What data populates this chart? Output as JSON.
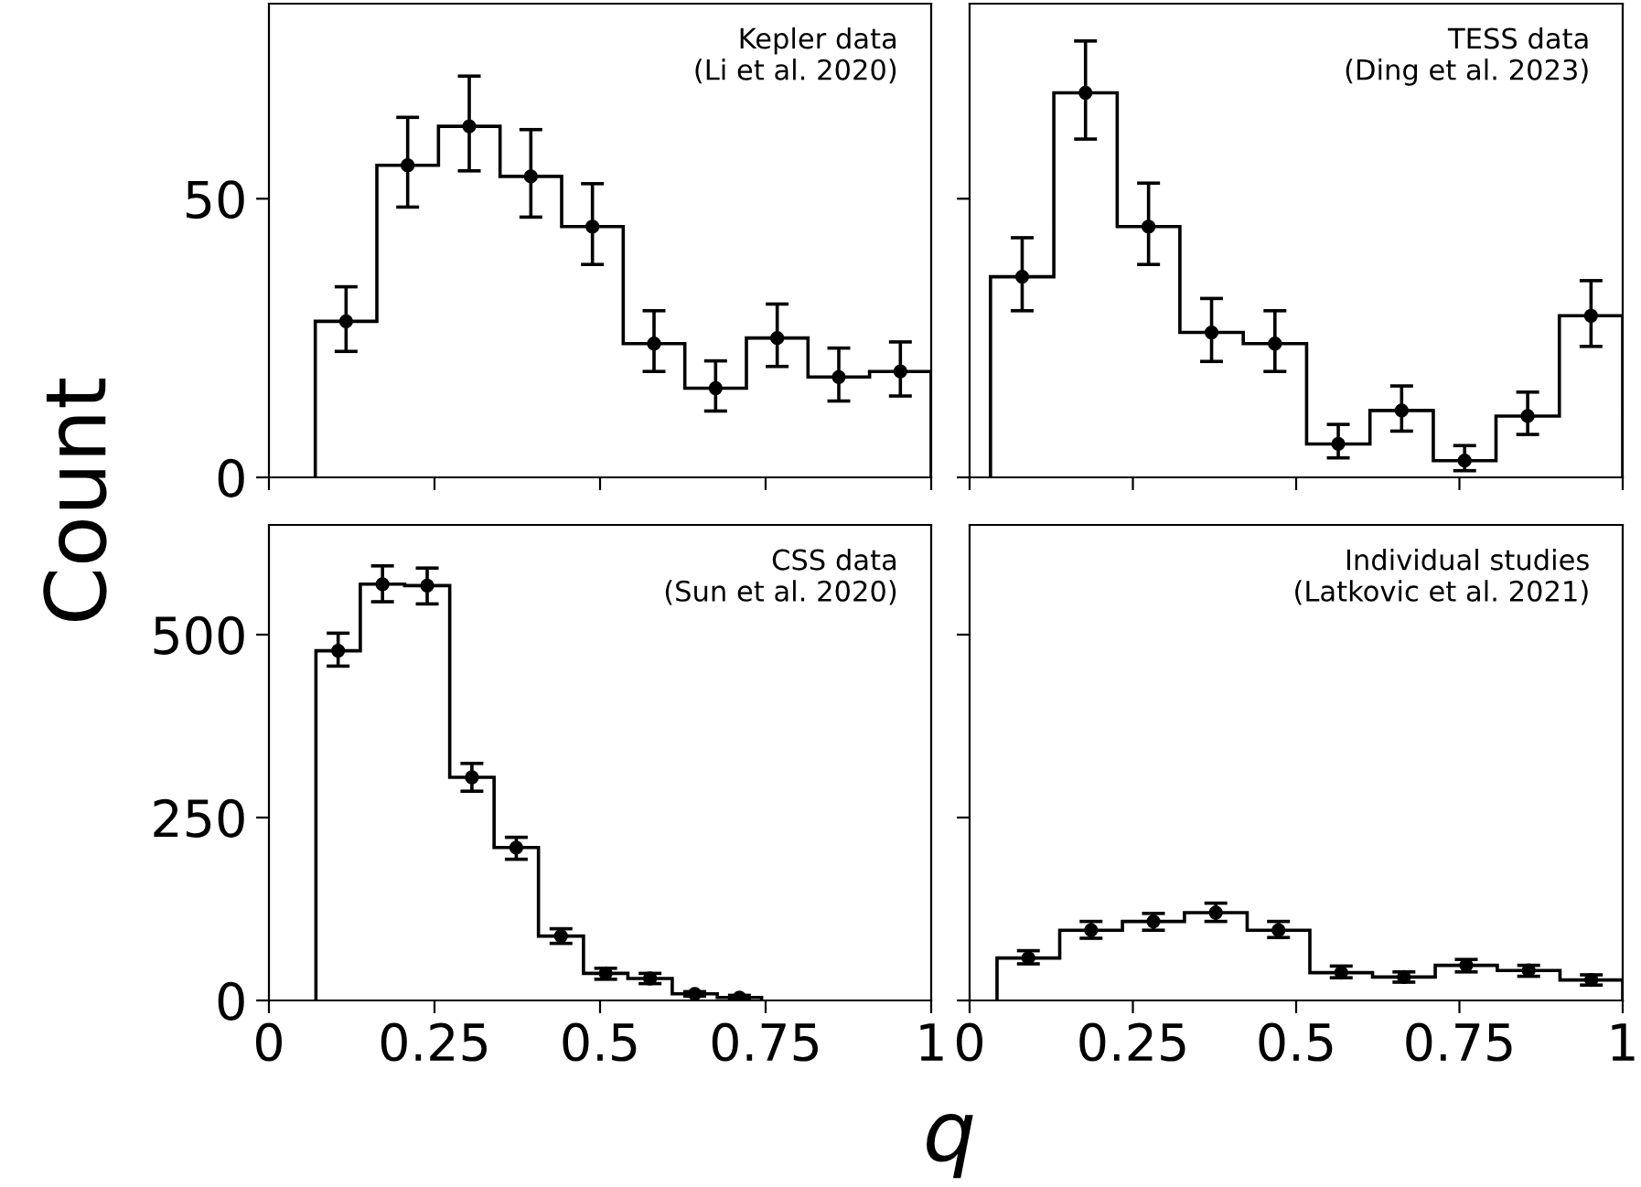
{
  "chart_data": [
    {
      "type": "histogram",
      "ylabel": "Count",
      "annotations": [
        "Kepler data\n(Li et al. 2020)"
      ],
      "bins": [
        0.07,
        0.163,
        0.256,
        0.349,
        0.442,
        0.535,
        0.628,
        0.721,
        0.814,
        0.907,
        1.0
      ],
      "values": [
        28,
        56,
        63,
        54,
        45,
        24,
        16,
        25,
        18,
        19
      ],
      "color": "#000000",
      "series": [
        {
          "type": "scatter",
          "color": "#000000",
          "x": [
            0.1165,
            0.2095,
            0.3025,
            0.3955,
            0.4885,
            0.5815,
            0.6745,
            0.7675,
            0.8605,
            0.9535
          ],
          "values": [
            28,
            56,
            63,
            54,
            45,
            24,
            16,
            25,
            18,
            19
          ],
          "errors": [
            [
              22.6,
              34.2
            ],
            [
              48.5,
              64.6
            ],
            [
              55,
              72
            ],
            [
              46.7,
              62.4
            ],
            [
              38.2,
              52.7
            ],
            [
              19,
              29.9
            ],
            [
              11.9,
              20.9
            ],
            [
              19.9,
              31.1
            ],
            [
              13.7,
              23.2
            ],
            [
              14.6,
              24.3
            ]
          ]
        }
      ],
      "marker": "circle",
      "xlim": [
        0,
        1
      ],
      "ylim": [
        0,
        85
      ],
      "yticks": [
        0,
        50
      ],
      "xticks": [
        0,
        0.25,
        0.5,
        0.75,
        1
      ],
      "tick_labels": "y"
    },
    {
      "type": "histogram",
      "annotations": [
        "TESS data\n(Ding et al. 2023)"
      ],
      "bins": [
        0.032,
        0.129,
        0.226,
        0.322,
        0.419,
        0.516,
        0.613,
        0.71,
        0.806,
        0.903,
        1.0
      ],
      "values": [
        36,
        69,
        45,
        26,
        24,
        6,
        12,
        3,
        11,
        29
      ],
      "color": "#000000",
      "series": [
        {
          "type": "scatter",
          "color": "#000000",
          "x": [
            0.0805,
            0.1775,
            0.274,
            0.3705,
            0.4675,
            0.5645,
            0.6615,
            0.758,
            0.8545,
            0.9515
          ],
          "values": [
            36,
            69,
            45,
            26,
            24,
            6,
            12,
            3,
            11,
            29
          ],
          "errors": [
            [
              29.9,
              43
            ],
            [
              60.7,
              78.3
            ],
            [
              38.2,
              52.8
            ],
            [
              20.8,
              32.1
            ],
            [
              19,
              29.9
            ],
            [
              3.5,
              9.5
            ],
            [
              8.3,
              16.4
            ],
            [
              1.2,
              5.7
            ],
            [
              7.7,
              15.3
            ],
            [
              23.5,
              35.3
            ]
          ]
        }
      ],
      "marker": "circle",
      "xlim": [
        0,
        1
      ],
      "ylim": [
        0,
        85
      ],
      "yticks": [
        0,
        50
      ],
      "xticks": [
        0,
        0.25,
        0.5,
        0.75,
        1
      ],
      "tick_labels": false
    },
    {
      "type": "histogram",
      "xlabel": "q",
      "annotations": [
        "CSS data\n(Sun et al. 2020)"
      ],
      "bins": [
        0.071,
        0.138,
        0.205,
        0.273,
        0.34,
        0.407,
        0.475,
        0.542,
        0.609,
        0.677,
        0.744
      ],
      "values": [
        478,
        569,
        567,
        305,
        209,
        88,
        37,
        30,
        9,
        4
      ],
      "color": "#000000",
      "series": [
        {
          "type": "scatter",
          "color": "#000000",
          "x": [
            0.1045,
            0.1715,
            0.239,
            0.3065,
            0.3735,
            0.441,
            0.5085,
            0.5755,
            0.643,
            0.7105
          ],
          "values": [
            478,
            569,
            567,
            305,
            209,
            88,
            37,
            30,
            9,
            4
          ],
          "errors": [
            [
              457,
              502
            ],
            [
              545,
              594
            ],
            [
              542,
              591
            ],
            [
              286,
              324
            ],
            [
              193,
              223
            ],
            [
              78,
              98
            ],
            [
              29,
              44
            ],
            [
              23,
              37
            ],
            [
              6,
              12
            ],
            [
              2,
              7
            ]
          ]
        }
      ],
      "marker": "circle",
      "xlim": [
        0,
        1
      ],
      "ylim": [
        0,
        650
      ],
      "yticks": [
        0,
        250,
        500
      ],
      "xticks": [
        0,
        0.25,
        0.5,
        0.75,
        1
      ]
    },
    {
      "type": "histogram",
      "annotations": [
        "Individual studies\n(Latkovic et al. 2021)"
      ],
      "bins": [
        0.042,
        0.138,
        0.234,
        0.329,
        0.425,
        0.521,
        0.617,
        0.713,
        0.808,
        0.904,
        1.0
      ],
      "values": [
        58,
        96,
        108,
        120,
        96,
        38,
        32,
        48,
        41,
        28
      ],
      "color": "#000000",
      "series": [
        {
          "type": "scatter",
          "color": "#000000",
          "x": [
            0.09,
            0.186,
            0.2815,
            0.377,
            0.473,
            0.569,
            0.665,
            0.7605,
            0.856,
            0.952
          ],
          "values": [
            58,
            96,
            108,
            120,
            96,
            38,
            32,
            48,
            41,
            28
          ],
          "errors": [
            [
              50,
              68
            ],
            [
              85,
              108
            ],
            [
              96,
              119
            ],
            [
              108,
              133
            ],
            [
              86,
              108
            ],
            [
              31,
              47
            ],
            [
              25,
              39
            ],
            [
              39,
              56
            ],
            [
              33,
              48
            ],
            [
              21,
              35
            ]
          ]
        }
      ],
      "marker": "circle",
      "xlim": [
        0,
        1
      ],
      "ylim": [
        0,
        650
      ],
      "yticks": [
        0,
        250,
        500
      ],
      "xticks": [
        0,
        0.25,
        0.5,
        0.75,
        1
      ],
      "tick_labels": "x"
    }
  ]
}
